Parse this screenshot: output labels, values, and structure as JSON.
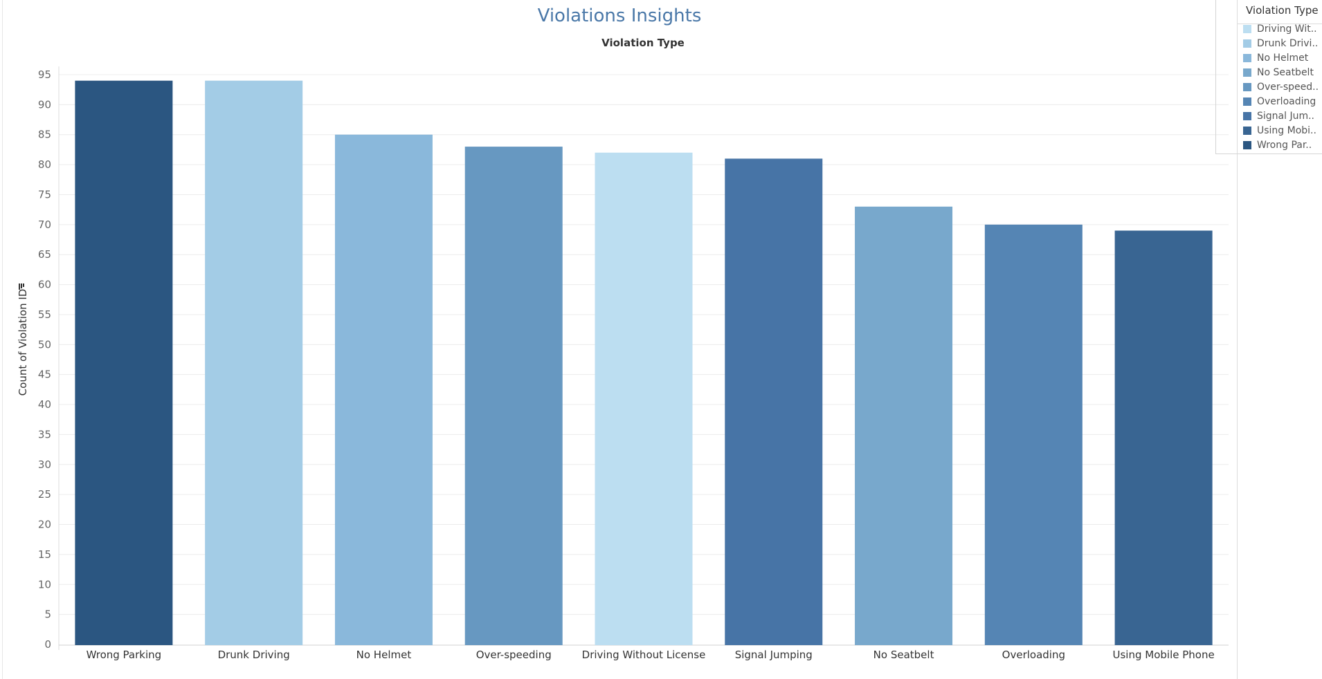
{
  "title": "Violations Insights",
  "legend": {
    "title": "Violation Type",
    "items": [
      {
        "label": "Driving Wit..",
        "color": "#bcdef1"
      },
      {
        "label": "Drunk Drivi..",
        "color": "#a3cce6"
      },
      {
        "label": "No Helmet",
        "color": "#8ab8db"
      },
      {
        "label": "No Seatbelt",
        "color": "#78a8cc"
      },
      {
        "label": "Over-speed..",
        "color": "#6798c1"
      },
      {
        "label": "Overloading",
        "color": "#5585b4"
      },
      {
        "label": "Signal Jum..",
        "color": "#4774a6"
      },
      {
        "label": "Using Mobi..",
        "color": "#396592"
      },
      {
        "label": "Wrong Par..",
        "color": "#2b5681"
      }
    ]
  },
  "chart_data": {
    "type": "bar",
    "title": "Violations Insights",
    "column_header": "Violation Type",
    "xlabel": "",
    "ylabel": "Count of Violation ID",
    "ylim": [
      0,
      95
    ],
    "yticks": [
      0,
      5,
      10,
      15,
      20,
      25,
      30,
      35,
      40,
      45,
      50,
      55,
      60,
      65,
      70,
      75,
      80,
      85,
      90,
      95
    ],
    "categories": [
      "Wrong Parking",
      "Drunk Driving",
      "No Helmet",
      "Over-speeding",
      "Driving Without License",
      "Signal Jumping",
      "No Seatbelt",
      "Overloading",
      "Using Mobile Phone"
    ],
    "values": [
      94,
      94,
      85,
      83,
      82,
      81,
      73,
      70,
      69
    ],
    "colors": [
      "#2b5681",
      "#a3cce6",
      "#8ab8db",
      "#6798c1",
      "#bcdef1",
      "#4774a6",
      "#78a8cc",
      "#5585b4",
      "#396592"
    ],
    "grid": true,
    "legend_position": "right"
  }
}
